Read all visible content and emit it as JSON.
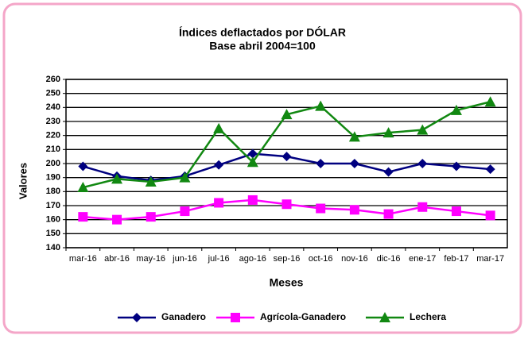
{
  "chart_data": {
    "type": "line",
    "title": [
      "Índices deflactados por DÓLAR",
      "Base abril 2004=100"
    ],
    "x_label": "Meses",
    "y_label": "Valores",
    "categories": [
      "mar-16",
      "abr-16",
      "may-16",
      "jun-16",
      "jul-16",
      "ago-16",
      "sep-16",
      "oct-16",
      "nov-16",
      "dic-16",
      "ene-17",
      "feb-17",
      "mar-17"
    ],
    "series": [
      {
        "name": "Ganadero",
        "color": "#000080",
        "marker": "diamond",
        "values": [
          198,
          191,
          188,
          191,
          199,
          207,
          205,
          200,
          200,
          194,
          200,
          198,
          196
        ]
      },
      {
        "name": "Agrícola-Ganadero",
        "color": "#ff00ff",
        "marker": "square",
        "values": [
          162,
          160,
          162,
          166,
          172,
          174,
          171,
          168,
          167,
          164,
          169,
          166,
          163
        ]
      },
      {
        "name": "Lechera",
        "color": "#118811",
        "marker": "triangle",
        "values": [
          183,
          189,
          187,
          190,
          225,
          201,
          235,
          241,
          219,
          222,
          224,
          238,
          244
        ]
      }
    ],
    "ylim": [
      140,
      260
    ],
    "yticks": [
      140,
      150,
      160,
      170,
      180,
      190,
      200,
      210,
      220,
      230,
      240,
      250,
      260
    ],
    "grid": true,
    "legend": "bottom"
  }
}
